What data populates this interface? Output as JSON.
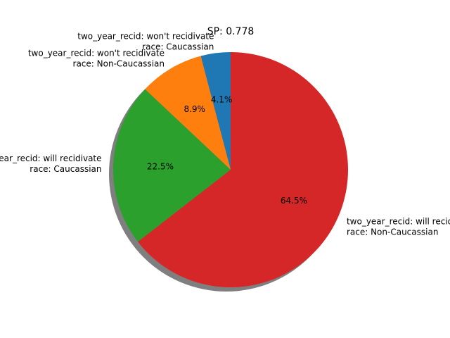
{
  "chart_data": {
    "type": "pie",
    "title": "SP: 0.778",
    "slices": [
      {
        "label": [
          "two_year_recid: won't recidivate",
          "race: Caucassian"
        ],
        "value": 4.1,
        "pct_text": "4.1%",
        "color": "#1f77b4"
      },
      {
        "label": [
          "two_year_recid: won't recidivate",
          "race: Non-Caucassian"
        ],
        "value": 8.9,
        "pct_text": "8.9%",
        "color": "#ff7f0e"
      },
      {
        "label": [
          "two_year_recid: will recidivate",
          "race: Caucassian"
        ],
        "value": 22.5,
        "pct_text": "22.5%",
        "color": "#2ca02c"
      },
      {
        "label": [
          "two_year_recid: will recidivate",
          "race: Non-Caucassian"
        ],
        "value": 64.5,
        "pct_text": "64.5%",
        "color": "#d62728"
      }
    ],
    "start_angle": 90,
    "direction": "counterclockwise",
    "shadow": true
  }
}
